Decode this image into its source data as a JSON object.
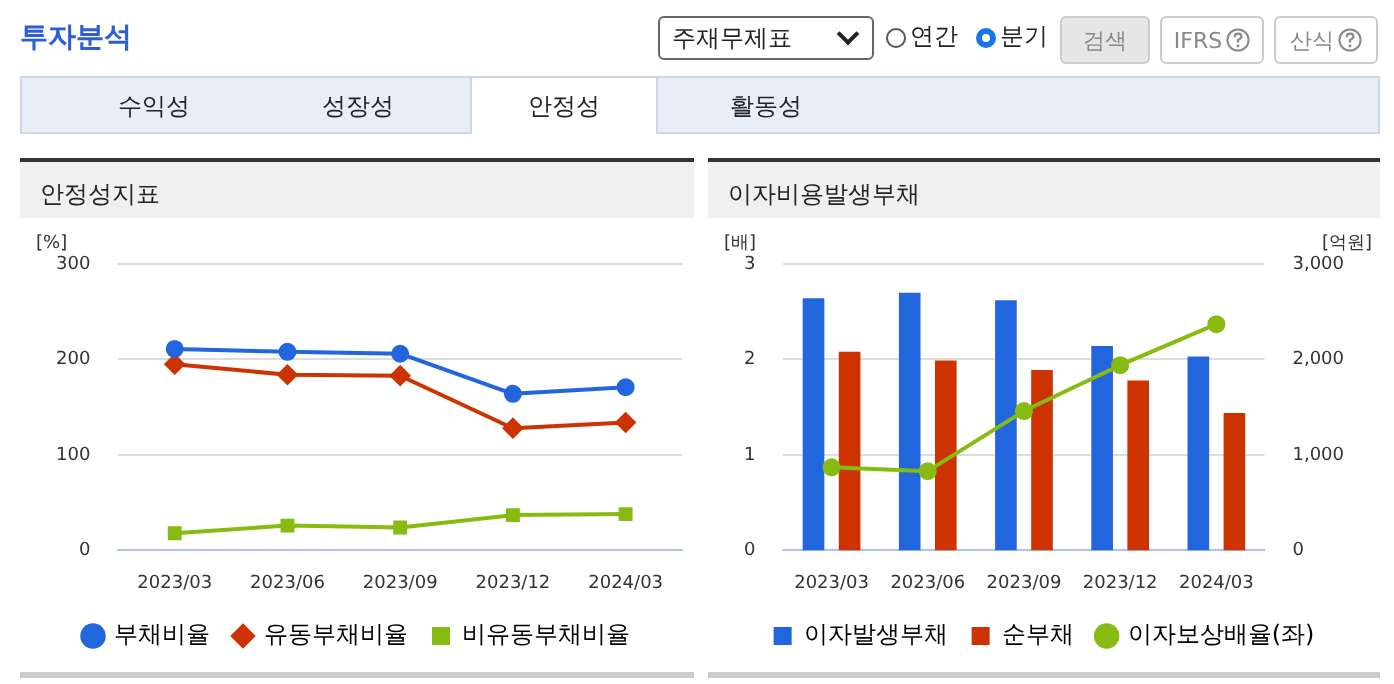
{
  "chart_data": [
    {
      "type": "other",
      "title": "투자분석",
      "annotations": [
        "주재무제표",
        "연간",
        "분기",
        "검색",
        "IFRS",
        "산식",
        "수익성",
        "성장성",
        "안정성",
        "활동성"
      ]
    },
    {
      "type": "line",
      "title": "안정성지표",
      "ylabel": "[%]",
      "categories": [
        "2023/03",
        "2023/06",
        "2023/09",
        "2023/12",
        "2024/03"
      ],
      "ylim": [
        0,
        300
      ],
      "yticks": [
        0,
        100,
        200,
        300
      ],
      "grid": "y",
      "legend": "bottom",
      "series": [
        {
          "name": "부채비율",
          "color": "#2266dd",
          "marker": "circle",
          "values": [
            211,
            208,
            206,
            164,
            171
          ]
        },
        {
          "name": "유동부채비율",
          "color": "#cc3300",
          "marker": "diamond",
          "values": [
            195,
            184,
            183,
            128,
            134
          ]
        },
        {
          "name": "비유동부채비율",
          "color": "#88bb11",
          "marker": "square",
          "values": [
            18,
            26,
            24,
            37,
            38
          ]
        }
      ]
    },
    {
      "type": "bar",
      "title": "이자비용발생부채",
      "ylabel": "[배]",
      "y2label": "[억원]",
      "categories": [
        "2023/03",
        "2023/06",
        "2023/09",
        "2023/12",
        "2024/03"
      ],
      "ylim": [
        0,
        3
      ],
      "yticks": [
        0,
        1,
        2,
        3
      ],
      "y2lim": [
        0,
        3000
      ],
      "y2ticks": [
        0,
        {
          "value": 1000,
          "label": "1,000"
        },
        {
          "value": 2000,
          "label": "2,000"
        },
        {
          "value": 3000,
          "label": "3,000"
        }
      ],
      "grid": "y",
      "legend": "bottom",
      "series": [
        {
          "name": "이자발생부채",
          "color": "#2266dd",
          "axis": "y2",
          "values": [
            2640,
            2700,
            2620,
            2140,
            2030
          ]
        },
        {
          "name": "순부채",
          "color": "#cc3300",
          "axis": "y2",
          "values": [
            2080,
            1990,
            1890,
            1780,
            1440
          ]
        },
        {
          "name": "이자보상배율(좌)",
          "type": "line",
          "color": "#88bb11",
          "marker": "circle",
          "axis": "y",
          "values": [
            0.87,
            0.83,
            1.46,
            1.94,
            2.37
          ]
        }
      ]
    }
  ]
}
